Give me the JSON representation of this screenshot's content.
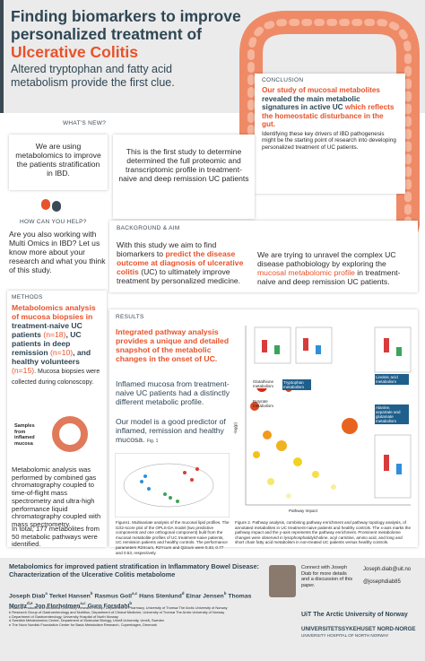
{
  "header": {
    "title_line1": "Finding biomarkers to improve",
    "title_line2": "personalized treatment of",
    "title_highlight": "Ulcerative Colitis",
    "subtitle": "Altered tryptophan and fatty acid metabolism provide the first clue."
  },
  "conclusion": {
    "heading": "CONCLUSION",
    "part1": "Our study of mucosal metabolites",
    "part2": "revealed the main metabolic signatures in active UC",
    "part3": "which reflects the homeostatic disturbance in the gut.",
    "text": "Identifying these key drivers of IBD pathogenesis might be the starting point of research into developing personalized treatment of UC patients."
  },
  "whats_new": {
    "heading": "WHAT'S NEW?",
    "left": "We are using metabolomics to improve the patients stratification in IBD.",
    "right": "This is the first study to determine determined the full proteomic and transcriptomic profile in treatment-naive and deep remission UC patients"
  },
  "help": {
    "heading": "HOW CAN YOU HELP?",
    "text": "Are you also working with Multi Omics in IBD? Let us know more about your research and what you think of this study."
  },
  "background": {
    "heading": "BACKGROUND & AIM",
    "left_pre": "With this study we aim to find biomarkers to ",
    "left_highlight": "predict the disease outcome at diagnosis of ulcerative colitis",
    "left_post": " (UC) to ultimately improve treatment by personalized medicine.",
    "right_pre": "We are trying to unravel the complex UC disease pathobiology by exploring the ",
    "right_highlight": "mucosal metabolomic profile",
    "right_post": " in treatment-naive and deep remission UC patients."
  },
  "methods": {
    "heading": "METHODS",
    "intro": "Metabolomics analysis of mucosa biopsies in",
    "g1": "treatment-naive UC patients ",
    "n1": "(n=18)",
    "g2": ", UC patients in deep remission ",
    "n2": "(n=10)",
    "g3": ", and healthy volunteers ",
    "n3": "(n=15)",
    "end": ". Mucosa biopsies were collected during colonoscopy.",
    "sample_label": "Samples from inflamed mucosa",
    "analysis": "Metabolomic analysis was performed by combined gas chromatography coupled to time-of-flight mass spectrometry and ultra-high performance liquid chromatography coupled with mass spectrometry.",
    "total": "In total, 177 metabolites from 50 metabolic pathways were identified."
  },
  "results": {
    "heading": "RESULTS",
    "highlight": "Integrated pathway analysis provides a unique and detailed snapshot of the metabolic changes in the onset of UC.",
    "text1": "Inflamed mucosa from treatment-naive UC patients had a distinctly different metabolic profile.",
    "text2": "Our model is a good predictor of inflamed, remission and healthy mucosa.",
    "fig_ref": "Fig. 1",
    "fig1_caption": "Figure1. Multivariate analysis of the mucosal lipid profiles. The t1/t2-score plot of the OPLS-DA model (two predictive components and one orthogonal component) built from the mucosal metabolite profiles of UC treatment-naive patients, UC remission patients and healthy controls. The performance parameters R2Xcum, R2Ycum and Q2cum were 0.33, 0.77 and 0.53, respectively.",
    "fig2_caption": "Figure 2. Pathway analysis, combining pathway enrichment and pathway topology analysis, of annotated metabolites in UC treatment-naive patients and healthy controls. The x-axis marks the pathway impact and the y-axis represents the pathway enrichment. Prominent metabolome changes were observed in lysophosphatidylcholine, acyl carnitine, amino acid, and long and short chain fatty acid metabolism in non-treated UC patients versus healthy controls.",
    "fig2_labels": [
      "Glutathione metabolism",
      "Tryptophan metabolism",
      "Butyrate metabolism",
      "Linoleic acid metabolism",
      "Alanine, aspartate and glutamate metabolism"
    ],
    "fig2_xlabel": "Pathway Impact",
    "fig2_ylabel": "-log(p)"
  },
  "footer": {
    "title": "Metabolomics for improved patient stratification in Inflammatory Bowel Disease: Characterization of the Ulcerative Colitis metabolome",
    "authors": [
      {
        "name": "Joseph Diab",
        "sup": "a"
      },
      {
        "name": "Terkel Hansen",
        "sup": "b"
      },
      {
        "name": "Rasmus Goll",
        "sup": "a,c"
      },
      {
        "name": "Hans Stenlund",
        "sup": "d"
      },
      {
        "name": "Einar Jensen",
        "sup": "b"
      },
      {
        "name": "Thomas Moritz",
        "sup": "d,e"
      },
      {
        "name": "Jon Florholmen",
        "sup": "a,c"
      },
      {
        "name": "Guro Forsdahl",
        "sup": "b"
      }
    ],
    "affiliations": [
      "a Natural Products and Medicinal Chemistry Research Group, Department of Pharmacy, University of Tromsø The Arctic University of Norway",
      "b Research Group of Gastroenterology and Nutrition, Department of Clinical Medicine, University of Tromsø The Arctic University of Norway",
      "c Department of Gastroenterology, University Hospital of North Norway",
      "d Swedish Metabolomics Center, Department of Molecular Biology, Umeå University, Umeå, Sweden",
      "e The Novo Nordisk Foundation Center for Basic Metabolism Research, Copenhagen, Denmark"
    ],
    "contact": "Connect with Joseph Diab for more details and a discussion of this paper.",
    "email": "Joseph.diab@uit.no",
    "twitter": "@josephdiab85",
    "uit": "UiT The Arctic University of Norway",
    "unn": "UNIVERSITETSSYKEHUSET NORD-NORGE",
    "unn_en": "UNIVERSITY HOSPITAL OF NORTH NORWAY"
  }
}
